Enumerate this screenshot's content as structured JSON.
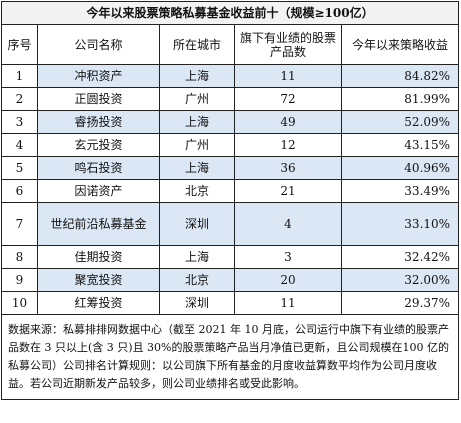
{
  "title": "今年以来股票策略私募基金收益前十（规模≥100亿）",
  "headers": [
    "序号",
    "公司名称",
    "所在城市",
    "旗下有业绩的股票产品数",
    "今年以来策略收益"
  ],
  "rows": [
    {
      "rank": "1",
      "name": "冲积资产",
      "city": "上海",
      "count": "11",
      "return": "84.82%"
    },
    {
      "rank": "2",
      "name": "正圆投资",
      "city": "广州",
      "count": "72",
      "return": "81.99%"
    },
    {
      "rank": "3",
      "name": "睿扬投资",
      "city": "上海",
      "count": "49",
      "return": "52.09%"
    },
    {
      "rank": "4",
      "name": "玄元投资",
      "city": "广州",
      "count": "12",
      "return": "43.15%"
    },
    {
      "rank": "5",
      "name": "鸣石投资",
      "city": "上海",
      "count": "36",
      "return": "40.96%"
    },
    {
      "rank": "6",
      "name": "因诺资产",
      "city": "北京",
      "count": "21",
      "return": "33.49%"
    },
    {
      "rank": "7",
      "name": "世纪前沿私募基金",
      "city": "深圳",
      "count": "4",
      "return": "33.10%"
    },
    {
      "rank": "8",
      "name": "佳期投资",
      "city": "上海",
      "count": "3",
      "return": "32.42%"
    },
    {
      "rank": "9",
      "name": "聚宽投资",
      "city": "北京",
      "count": "20",
      "return": "32.00%"
    },
    {
      "rank": "10",
      "name": "红筹投资",
      "city": "深圳",
      "count": "11",
      "return": "29.37%"
    }
  ],
  "note": "数据来源：私募排排网数据中心（截至 2021 年 10 月底，公司运行中旗下有业绩的股票产品数在 3 只以上(含 3 只)且 30%的股票策略产品当月净值已更新，且公司规模在100 亿的私募公司）公司排名计算规则：以公司旗下所有基金的月度收益算数平均作为公司月度收益。若公司近期新发产品较多，则公司业绩排名或受此影响。",
  "highlight_color": "#dbe7f5"
}
